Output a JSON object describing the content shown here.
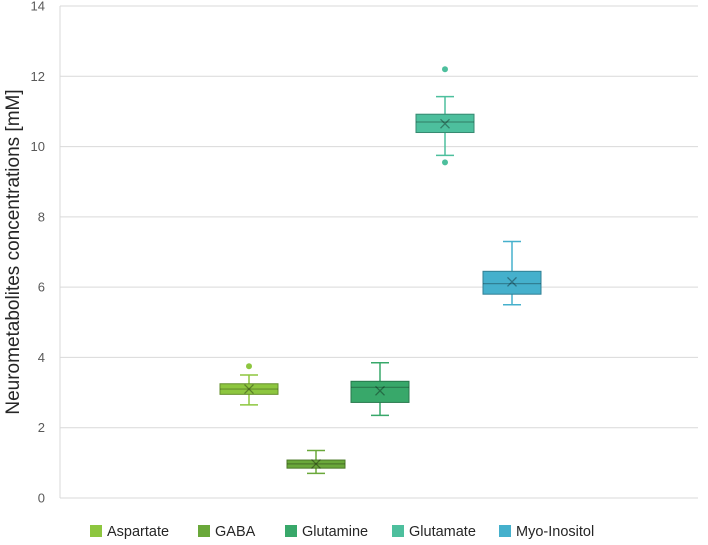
{
  "chart_data": {
    "type": "box",
    "title": "",
    "xlabel": "",
    "ylabel": "Neurometabolites concentrations [mM]",
    "ylim": [
      0,
      14
    ],
    "yticks": [
      0,
      2,
      4,
      6,
      8,
      10,
      12,
      14
    ],
    "grid": true,
    "legend_position": "bottom",
    "series": [
      {
        "name": "Aspartate",
        "color": "#8dc63f",
        "whisker_low": 2.65,
        "q1": 2.95,
        "median": 3.1,
        "q3": 3.25,
        "whisker_high": 3.5,
        "mean": 3.1,
        "outliers": [
          3.75
        ]
      },
      {
        "name": "GABA",
        "color": "#6aa83a",
        "whisker_low": 0.7,
        "q1": 0.85,
        "median": 0.97,
        "q3": 1.08,
        "whisker_high": 1.35,
        "mean": 0.97,
        "outliers": []
      },
      {
        "name": "Glutamine",
        "color": "#38a86a",
        "whisker_low": 2.35,
        "q1": 2.72,
        "median": 3.15,
        "q3": 3.32,
        "whisker_high": 3.85,
        "mean": 3.05,
        "outliers": []
      },
      {
        "name": "Glutamate",
        "color": "#4dbf9d",
        "whisker_low": 9.75,
        "q1": 10.4,
        "median": 10.7,
        "q3": 10.92,
        "whisker_high": 11.42,
        "mean": 10.65,
        "outliers": [
          9.55,
          12.2
        ]
      },
      {
        "name": "Myo-Inositol",
        "color": "#45b0cc",
        "whisker_low": 5.5,
        "q1": 5.8,
        "median": 6.1,
        "q3": 6.45,
        "whisker_high": 7.3,
        "mean": 6.15,
        "outliers": []
      }
    ]
  }
}
